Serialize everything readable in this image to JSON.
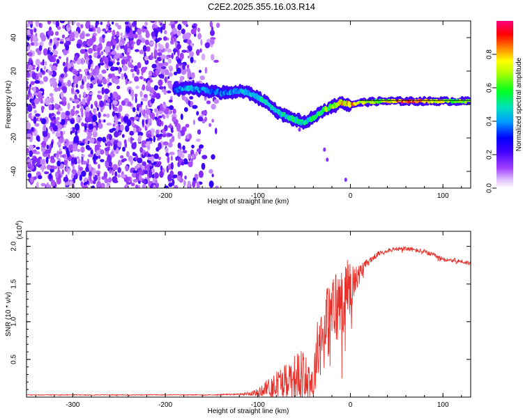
{
  "title": "C2E2.2025.355.16.03.R14",
  "chart_data": [
    {
      "type": "heatmap",
      "name": "spectrogram",
      "xlabel": "Height of straight line (km)",
      "ylabel": "Frequency (Hz)",
      "xlim": [
        -350,
        130
      ],
      "ylim": [
        -50,
        50
      ],
      "xticks": [
        -300,
        -200,
        -100,
        0,
        100
      ],
      "xtick_labels": [
        "-300",
        "-200",
        "-100",
        "0",
        "100"
      ],
      "yticks": [
        -40,
        -20,
        0,
        20,
        40
      ],
      "ytick_labels": [
        "-40",
        "-20",
        "0",
        "20",
        "40"
      ],
      "colorbar": {
        "label": "Normalized spectral amplitude",
        "range": [
          0,
          1
        ],
        "ticks": [
          0.0,
          0.2,
          0.4,
          0.6,
          0.8
        ],
        "tick_labels": [
          "0.0",
          "0.2",
          "0.4",
          "0.6",
          "0.8"
        ],
        "colors": [
          "#ffffff",
          "#c060ff",
          "#6000ff",
          "#0000ff",
          "#00c0ff",
          "#00ff40",
          "#ffff00",
          "#ff8000",
          "#ff0000",
          "#ff0080"
        ]
      },
      "signal_track": {
        "x": [
          -190,
          -175,
          -160,
          -150,
          -140,
          -130,
          -120,
          -110,
          -100,
          -90,
          -80,
          -70,
          -60,
          -50,
          -40,
          -30,
          -20,
          -10,
          0,
          10,
          30,
          60,
          90,
          130
        ],
        "y": [
          9,
          10,
          9,
          8,
          7,
          7,
          8,
          7,
          4,
          1,
          -4,
          -7,
          -9,
          -11,
          -8,
          -4,
          -1,
          1,
          0,
          1,
          2,
          2,
          2,
          2
        ],
        "amplitude": [
          0.35,
          0.45,
          0.4,
          0.4,
          0.38,
          0.4,
          0.42,
          0.45,
          0.5,
          0.5,
          0.48,
          0.52,
          0.55,
          0.5,
          0.55,
          0.6,
          0.7,
          0.8,
          0.85,
          0.75,
          0.65,
          0.95,
          0.75,
          0.65
        ]
      },
      "noise_region": {
        "x_range": [
          -350,
          -150
        ],
        "description_amplitude": 0.25
      },
      "outlier_points": {
        "x": [
          -55,
          -28,
          -25,
          -5
        ],
        "y": [
          -15,
          -27,
          -33,
          -45
        ]
      }
    },
    {
      "type": "line",
      "name": "snr",
      "xlabel": "Height of straight line (km)",
      "ylabel": "SNR (10 * v/v)",
      "y_multiplier_label": "(x10",
      "y_multiplier_exp": "4",
      "y_multiplier_close": ")",
      "xlim": [
        -350,
        130
      ],
      "ylim": [
        0,
        2.2
      ],
      "xticks": [
        -300,
        -200,
        -100,
        0,
        100
      ],
      "xtick_labels": [
        "-300",
        "-200",
        "-100",
        "0",
        "100"
      ],
      "yticks": [
        0.5,
        1.0,
        1.5,
        2.0
      ],
      "ytick_labels": [
        "0.5",
        "1.0",
        "1.5",
        "2.0"
      ],
      "color": "#e8302a",
      "series": [
        {
          "name": "SNR",
          "x": [
            -350,
            -300,
            -250,
            -200,
            -150,
            -120,
            -100,
            -90,
            -80,
            -70,
            -60,
            -50,
            -40,
            -35,
            -30,
            -25,
            -20,
            -15,
            -10,
            -5,
            0,
            5,
            10,
            15,
            20,
            25,
            30,
            40,
            50,
            60,
            70,
            80,
            90,
            100,
            110,
            120,
            130
          ],
          "y": [
            0.03,
            0.03,
            0.03,
            0.03,
            0.03,
            0.04,
            0.06,
            0.12,
            0.18,
            0.25,
            0.28,
            0.3,
            0.2,
            0.7,
            0.9,
            1.0,
            1.1,
            1.2,
            1.25,
            1.4,
            1.45,
            1.55,
            1.65,
            1.75,
            1.8,
            1.85,
            1.9,
            1.95,
            1.96,
            1.97,
            1.95,
            1.93,
            1.88,
            1.83,
            1.82,
            1.8,
            1.77
          ],
          "noise": [
            0.005,
            0.005,
            0.005,
            0.005,
            0.005,
            0.01,
            0.05,
            0.12,
            0.18,
            0.22,
            0.3,
            0.35,
            0.3,
            0.4,
            0.45,
            0.5,
            0.55,
            0.55,
            0.5,
            0.45,
            0.4,
            0.2,
            0.1,
            0.06,
            0.05,
            0.04,
            0.03,
            0.03,
            0.03,
            0.03,
            0.03,
            0.03,
            0.03,
            0.03,
            0.03,
            0.03,
            0.03
          ]
        }
      ]
    }
  ]
}
